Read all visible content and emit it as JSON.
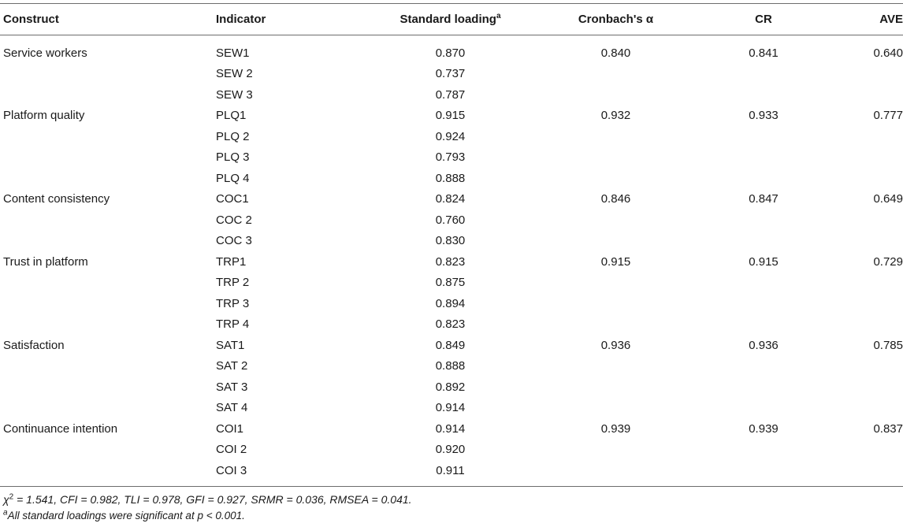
{
  "headers": {
    "construct": "Construct",
    "indicator": "Indicator",
    "loading": "Standard loading",
    "loading_sup": "a",
    "alpha": "Cronbach's α",
    "cr": "CR",
    "ave": "AVE"
  },
  "rows": [
    {
      "construct": "Service workers",
      "indicator": "SEW1",
      "loading": "0.870",
      "alpha": "0.840",
      "cr": "0.841",
      "ave": "0.640"
    },
    {
      "construct": "",
      "indicator": "SEW 2",
      "loading": "0.737",
      "alpha": "",
      "cr": "",
      "ave": ""
    },
    {
      "construct": "",
      "indicator": "SEW 3",
      "loading": "0.787",
      "alpha": "",
      "cr": "",
      "ave": ""
    },
    {
      "construct": "Platform quality",
      "indicator": "PLQ1",
      "loading": "0.915",
      "alpha": "0.932",
      "cr": "0.933",
      "ave": "0.777"
    },
    {
      "construct": "",
      "indicator": "PLQ 2",
      "loading": "0.924",
      "alpha": "",
      "cr": "",
      "ave": ""
    },
    {
      "construct": "",
      "indicator": "PLQ 3",
      "loading": "0.793",
      "alpha": "",
      "cr": "",
      "ave": ""
    },
    {
      "construct": "",
      "indicator": "PLQ 4",
      "loading": "0.888",
      "alpha": "",
      "cr": "",
      "ave": ""
    },
    {
      "construct": "Content consistency",
      "indicator": "COC1",
      "loading": "0.824",
      "alpha": "0.846",
      "cr": "0.847",
      "ave": "0.649"
    },
    {
      "construct": "",
      "indicator": "COC 2",
      "loading": "0.760",
      "alpha": "",
      "cr": "",
      "ave": ""
    },
    {
      "construct": "",
      "indicator": "COC 3",
      "loading": "0.830",
      "alpha": "",
      "cr": "",
      "ave": ""
    },
    {
      "construct": "Trust in platform",
      "indicator": "TRP1",
      "loading": "0.823",
      "alpha": "0.915",
      "cr": "0.915",
      "ave": "0.729"
    },
    {
      "construct": "",
      "indicator": "TRP 2",
      "loading": "0.875",
      "alpha": "",
      "cr": "",
      "ave": ""
    },
    {
      "construct": "",
      "indicator": "TRP 3",
      "loading": "0.894",
      "alpha": "",
      "cr": "",
      "ave": ""
    },
    {
      "construct": "",
      "indicator": "TRP 4",
      "loading": "0.823",
      "alpha": "",
      "cr": "",
      "ave": ""
    },
    {
      "construct": "Satisfaction",
      "indicator": "SAT1",
      "loading": "0.849",
      "alpha": "0.936",
      "cr": "0.936",
      "ave": "0.785"
    },
    {
      "construct": "",
      "indicator": "SAT 2",
      "loading": "0.888",
      "alpha": "",
      "cr": "",
      "ave": ""
    },
    {
      "construct": "",
      "indicator": "SAT 3",
      "loading": "0.892",
      "alpha": "",
      "cr": "",
      "ave": ""
    },
    {
      "construct": "",
      "indicator": "SAT 4",
      "loading": "0.914",
      "alpha": "",
      "cr": "",
      "ave": ""
    },
    {
      "construct": "Continuance intention",
      "indicator": "COI1",
      "loading": "0.914",
      "alpha": "0.939",
      "cr": "0.939",
      "ave": "0.837"
    },
    {
      "construct": "",
      "indicator": "COI 2",
      "loading": "0.920",
      "alpha": "",
      "cr": "",
      "ave": ""
    },
    {
      "construct": "",
      "indicator": "COI 3",
      "loading": "0.911",
      "alpha": "",
      "cr": "",
      "ave": ""
    }
  ],
  "footnotes": {
    "fit_prefix": "χ",
    "fit_sup": "2",
    "fit_text": " = 1.541, CFI = 0.982, TLI = 0.978, GFI = 0.927, SRMR = 0.036, RMSEA = 0.041.",
    "sig_sup": "a",
    "sig_text": "All standard loadings were significant at p < 0.001."
  }
}
